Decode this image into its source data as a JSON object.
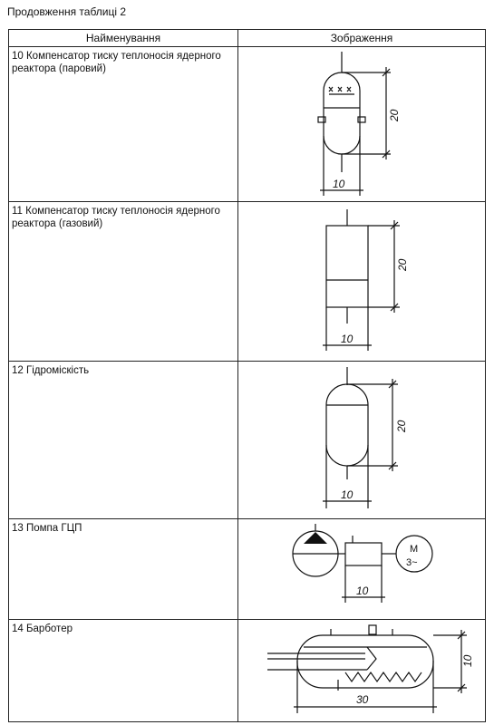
{
  "caption": "Продовження таблиці 2",
  "headers": {
    "name": "Найменування",
    "image": "Зображення"
  },
  "rows": [
    {
      "name": "10 Компенсатор тиску теплоносія ядерного реактора (паровий)",
      "dims": [
        "10",
        "20"
      ]
    },
    {
      "name": "11 Компенсатор тиску теплоносія ядерного реактора (газовий)",
      "dims": [
        "10",
        "20"
      ]
    },
    {
      "name": "12 Гідроміскість",
      "dims": [
        "10",
        "20"
      ]
    },
    {
      "name": "13 Помпа ГЦП",
      "dims": [
        "10"
      ],
      "motor_label": "M",
      "motor_phase": "3~"
    },
    {
      "name": "14 Барботер",
      "dims": [
        "30",
        "10"
      ]
    }
  ]
}
